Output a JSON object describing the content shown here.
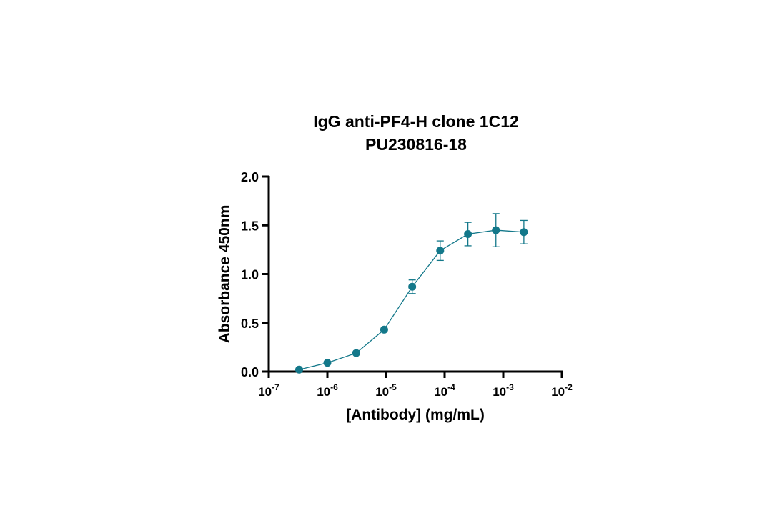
{
  "chart_data": {
    "type": "scatter",
    "title": "IgG anti-PF4-H clone 1C12",
    "subtitle": "PU230816-18",
    "xlabel": "[Antibody] (mg/mL)",
    "ylabel": "Absorbance 450nm",
    "x_scale": "log",
    "xlim": [
      1e-07,
      0.01
    ],
    "ylim": [
      0,
      2.0
    ],
    "x_tick_labels": [
      {
        "base": "10",
        "exp": "-7"
      },
      {
        "base": "10",
        "exp": "-6"
      },
      {
        "base": "10",
        "exp": "-5"
      },
      {
        "base": "10",
        "exp": "-4"
      },
      {
        "base": "10",
        "exp": "-3"
      },
      {
        "base": "10",
        "exp": "-2"
      }
    ],
    "x_tick_values": [
      1e-07,
      1e-06,
      1e-05,
      0.0001,
      0.001,
      0.01
    ],
    "y_ticks": [
      "0.0",
      "0.5",
      "1.0",
      "1.5",
      "2.0"
    ],
    "y_tick_values": [
      0,
      0.5,
      1.0,
      1.5,
      2.0
    ],
    "grid": false,
    "color": "#13788a",
    "series": [
      {
        "x": [
          3.3e-07,
          1e-06,
          3.1e-06,
          9.3e-06,
          2.8e-05,
          8.4e-05,
          0.00025,
          0.00075,
          0.00225
        ],
        "y": [
          0.02,
          0.09,
          0.19,
          0.43,
          0.87,
          1.24,
          1.41,
          1.45,
          1.43
        ],
        "error": [
          0,
          0,
          0,
          0,
          0.07,
          0.1,
          0.12,
          0.17,
          0.12
        ]
      }
    ]
  }
}
